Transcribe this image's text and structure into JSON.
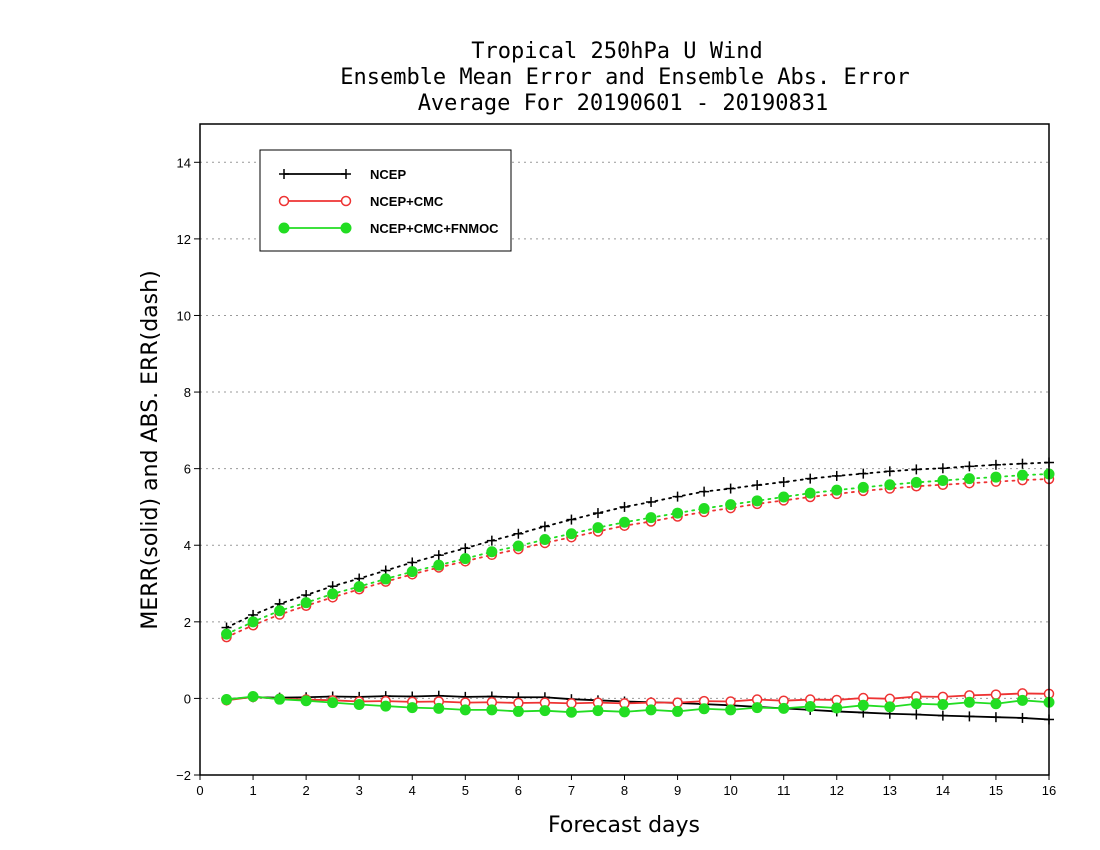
{
  "chart_data": {
    "type": "line",
    "title_lines": [
      "Tropical 250hPa U Wind",
      "Ensemble Mean Error and Ensemble Abs. Error",
      "Average For 20190601 - 20190831"
    ],
    "xlabel": "Forecast days",
    "ylabel": "MERR(solid) and ABS. ERR(dash)",
    "xlim": [
      0,
      16
    ],
    "ylim": [
      -2,
      15
    ],
    "xticks": [
      0,
      1,
      2,
      3,
      4,
      5,
      6,
      7,
      8,
      9,
      10,
      11,
      12,
      13,
      14,
      15,
      16
    ],
    "yticks": [
      -2,
      0,
      2,
      4,
      6,
      8,
      10,
      12,
      14
    ],
    "grid": "horizontal dotted",
    "legend_position": "top-left",
    "x": [
      0.5,
      1,
      1.5,
      2,
      2.5,
      3,
      3.5,
      4,
      4.5,
      5,
      5.5,
      6,
      6.5,
      7,
      7.5,
      8,
      8.5,
      9,
      9.5,
      10,
      10.5,
      11,
      11.5,
      12,
      12.5,
      13,
      13.5,
      14,
      14.5,
      15,
      15.5,
      16
    ],
    "series": [
      {
        "name": "NCEP",
        "color": "#000000",
        "marker": "plus",
        "merr": [
          -0.02,
          0.03,
          0.02,
          0.03,
          0.05,
          0.04,
          0.06,
          0.05,
          0.07,
          0.04,
          0.05,
          0.03,
          0.03,
          -0.02,
          -0.05,
          -0.08,
          -0.1,
          -0.12,
          -0.15,
          -0.18,
          -0.22,
          -0.26,
          -0.3,
          -0.34,
          -0.37,
          -0.4,
          -0.42,
          -0.45,
          -0.47,
          -0.49,
          -0.51,
          -0.55
        ],
        "abs_err": [
          1.85,
          2.18,
          2.47,
          2.7,
          2.93,
          3.13,
          3.34,
          3.55,
          3.74,
          3.92,
          4.12,
          4.3,
          4.49,
          4.67,
          4.84,
          5.0,
          5.13,
          5.27,
          5.4,
          5.48,
          5.57,
          5.65,
          5.74,
          5.81,
          5.87,
          5.93,
          5.98,
          6.01,
          6.06,
          6.1,
          6.13,
          6.16
        ]
      },
      {
        "name": "NCEP+CMC",
        "color": "#ee3333",
        "marker": "open-circle",
        "merr": [
          -0.05,
          0.04,
          -0.01,
          -0.03,
          -0.05,
          -0.08,
          -0.07,
          -0.09,
          -0.08,
          -0.11,
          -0.1,
          -0.12,
          -0.11,
          -0.13,
          -0.11,
          -0.13,
          -0.11,
          -0.11,
          -0.07,
          -0.08,
          -0.03,
          -0.06,
          -0.03,
          -0.04,
          0.01,
          -0.01,
          0.05,
          0.04,
          0.08,
          0.1,
          0.13,
          0.12
        ],
        "abs_err": [
          1.6,
          1.91,
          2.19,
          2.42,
          2.64,
          2.85,
          3.05,
          3.24,
          3.42,
          3.58,
          3.75,
          3.9,
          4.06,
          4.21,
          4.36,
          4.51,
          4.62,
          4.75,
          4.87,
          4.97,
          5.08,
          5.17,
          5.26,
          5.34,
          5.42,
          5.48,
          5.54,
          5.58,
          5.62,
          5.66,
          5.7,
          5.73
        ]
      },
      {
        "name": "NCEP+CMC+FNMOC",
        "color": "#22dd22",
        "marker": "filled-circle",
        "merr": [
          -0.03,
          0.05,
          -0.02,
          -0.06,
          -0.11,
          -0.16,
          -0.2,
          -0.24,
          -0.26,
          -0.3,
          -0.3,
          -0.34,
          -0.32,
          -0.36,
          -0.32,
          -0.35,
          -0.3,
          -0.34,
          -0.27,
          -0.3,
          -0.24,
          -0.26,
          -0.21,
          -0.25,
          -0.18,
          -0.22,
          -0.14,
          -0.16,
          -0.1,
          -0.14,
          -0.05,
          -0.1
        ],
        "abs_err": [
          1.68,
          2.0,
          2.29,
          2.5,
          2.73,
          2.92,
          3.12,
          3.31,
          3.48,
          3.65,
          3.83,
          3.98,
          4.15,
          4.3,
          4.46,
          4.6,
          4.72,
          4.84,
          4.96,
          5.06,
          5.16,
          5.26,
          5.36,
          5.44,
          5.51,
          5.58,
          5.64,
          5.69,
          5.74,
          5.78,
          5.83,
          5.86
        ]
      }
    ]
  }
}
